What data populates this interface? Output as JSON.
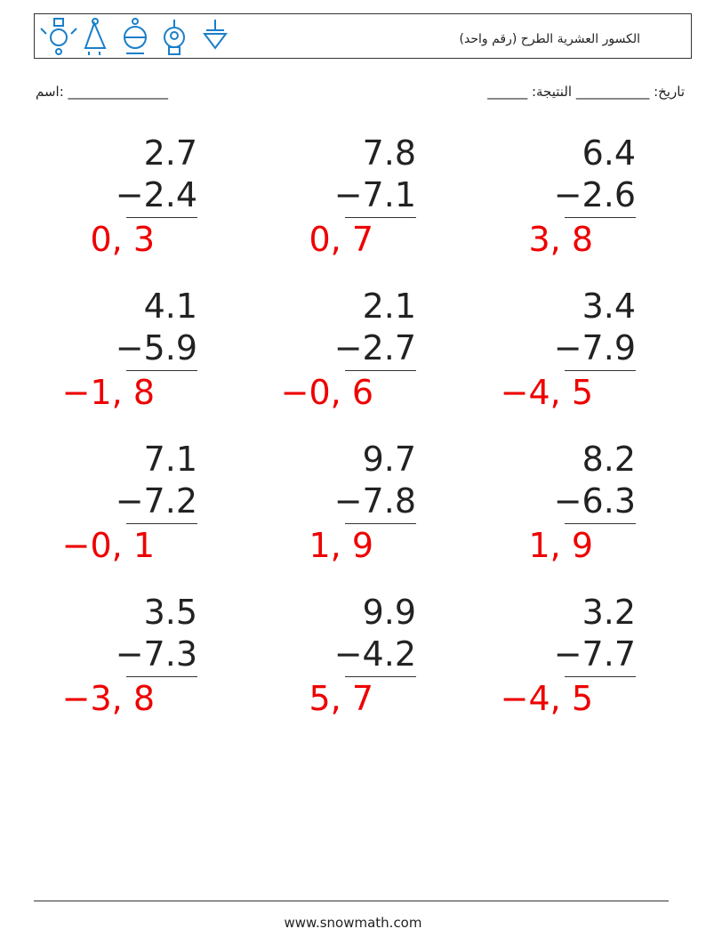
{
  "header": {
    "title": "الكسور العشرية الطرح (رقم واحد)"
  },
  "fields": {
    "name": "اسم: _______________",
    "score_date": "______ :تاريخ: ___________ النتيجة"
  },
  "problems": [
    [
      {
        "top": "2.7",
        "bottom": "−2.4",
        "answer": "0, 3"
      },
      {
        "top": "7.8",
        "bottom": "−7.1",
        "answer": "0, 7"
      },
      {
        "top": "6.4",
        "bottom": "−2.6",
        "answer": "3, 8"
      }
    ],
    [
      {
        "top": "4.1",
        "bottom": "−5.9",
        "answer": "−1, 8"
      },
      {
        "top": "2.1",
        "bottom": "−2.7",
        "answer": "−0, 6"
      },
      {
        "top": "3.4",
        "bottom": "−7.9",
        "answer": "−4, 5"
      }
    ],
    [
      {
        "top": "7.1",
        "bottom": "−7.2",
        "answer": "−0, 1"
      },
      {
        "top": "9.7",
        "bottom": "−7.8",
        "answer": "1, 9"
      },
      {
        "top": "8.2",
        "bottom": "−6.3",
        "answer": "1, 9"
      }
    ],
    [
      {
        "top": "3.5",
        "bottom": "−7.3",
        "answer": "−3, 8"
      },
      {
        "top": "9.9",
        "bottom": "−4.2",
        "answer": "5, 7"
      },
      {
        "top": "3.2",
        "bottom": "−7.7",
        "answer": "−4, 5"
      }
    ]
  ],
  "footer": {
    "url": "www.snowmath.com"
  }
}
